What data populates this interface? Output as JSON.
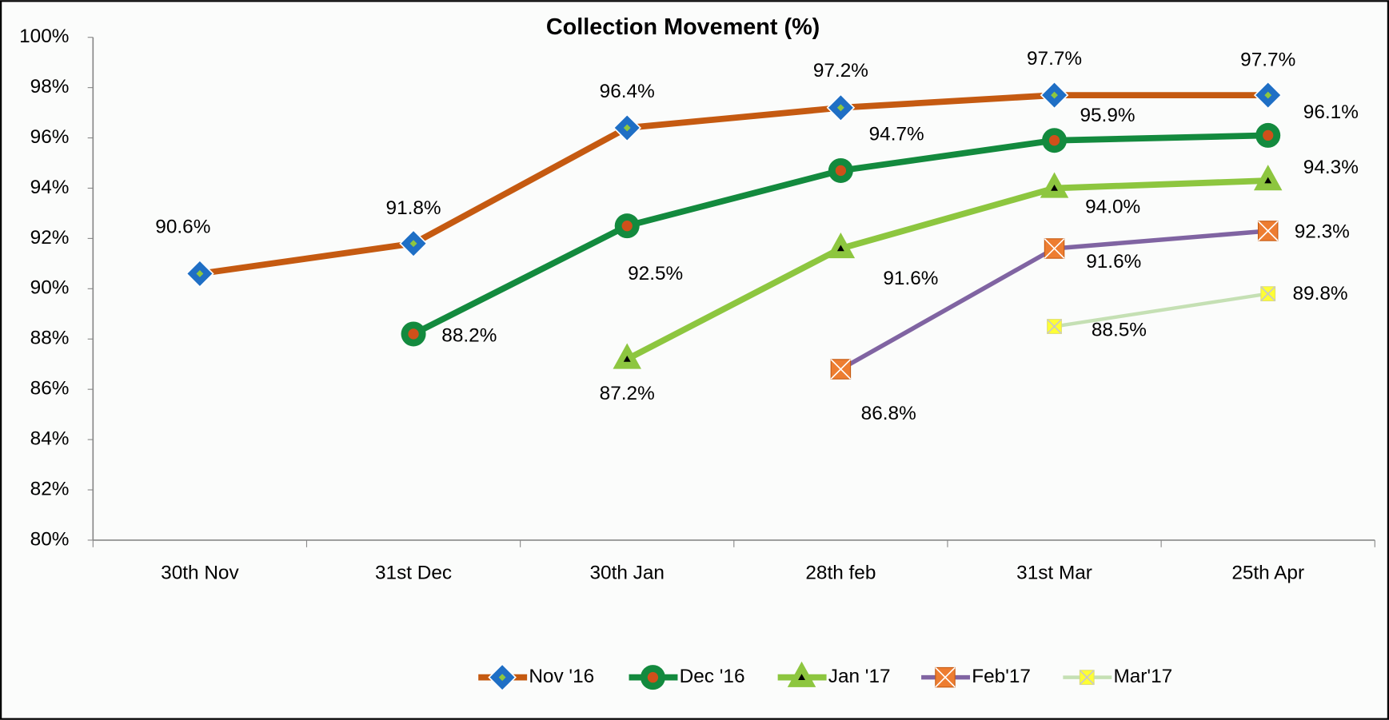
{
  "chart_data": {
    "type": "line",
    "title": "Collection Movement (%)",
    "categories": [
      "30th Nov",
      "31st Dec",
      "30th Jan",
      "28th feb",
      "31st Mar",
      "25th Apr"
    ],
    "ylim": [
      80,
      100
    ],
    "yticks": [
      {
        "value": 80,
        "label": "80%"
      },
      {
        "value": 82,
        "label": "82%"
      },
      {
        "value": 84,
        "label": "84%"
      },
      {
        "value": 86,
        "label": "86%"
      },
      {
        "value": 88,
        "label": "88%"
      },
      {
        "value": 90,
        "label": "90%"
      },
      {
        "value": 92,
        "label": "92%"
      },
      {
        "value": 94,
        "label": "94%"
      },
      {
        "value": 96,
        "label": "96%"
      },
      {
        "value": 98,
        "label": "98%"
      },
      {
        "value": 100,
        "label": "100%"
      }
    ],
    "grid": false,
    "legend": "bottom",
    "series": [
      {
        "name": "Nov '16",
        "color": "#c55a11",
        "marker_color": "#1f6fc5",
        "values": [
          90.6,
          91.8,
          96.4,
          97.2,
          97.7,
          97.7
        ],
        "value_labels": [
          "90.6%",
          "91.8%",
          "96.4%",
          "97.2%",
          "97.7%",
          "97.7%"
        ]
      },
      {
        "name": "Dec '16",
        "color": "#138a3e",
        "marker_color": "#d0501a",
        "values": [
          null,
          88.2,
          92.5,
          94.7,
          95.9,
          96.1
        ],
        "value_labels": [
          null,
          "88.2%",
          "92.5%",
          "94.7%",
          "95.9%",
          "96.1%"
        ]
      },
      {
        "name": "Jan '17",
        "color": "#8dc63f",
        "marker_color": "#000000",
        "values": [
          null,
          null,
          87.2,
          91.6,
          94.0,
          94.3
        ],
        "value_labels": [
          null,
          null,
          "87.2%",
          "91.6%",
          "94.0%",
          "94.3%"
        ]
      },
      {
        "name": "Feb'17",
        "color": "#8064a2",
        "marker_color": "#ed7d31",
        "values": [
          null,
          null,
          null,
          86.8,
          91.6,
          92.3
        ],
        "value_labels": [
          null,
          null,
          null,
          "86.8%",
          "91.6%",
          "92.3%"
        ]
      },
      {
        "name": "Mar'17",
        "color": "#c5e0b4",
        "marker_color": "#ffff33",
        "values": [
          null,
          null,
          null,
          null,
          88.5,
          89.8
        ],
        "value_labels": [
          null,
          null,
          null,
          null,
          "88.5%",
          "89.8%"
        ]
      }
    ]
  }
}
